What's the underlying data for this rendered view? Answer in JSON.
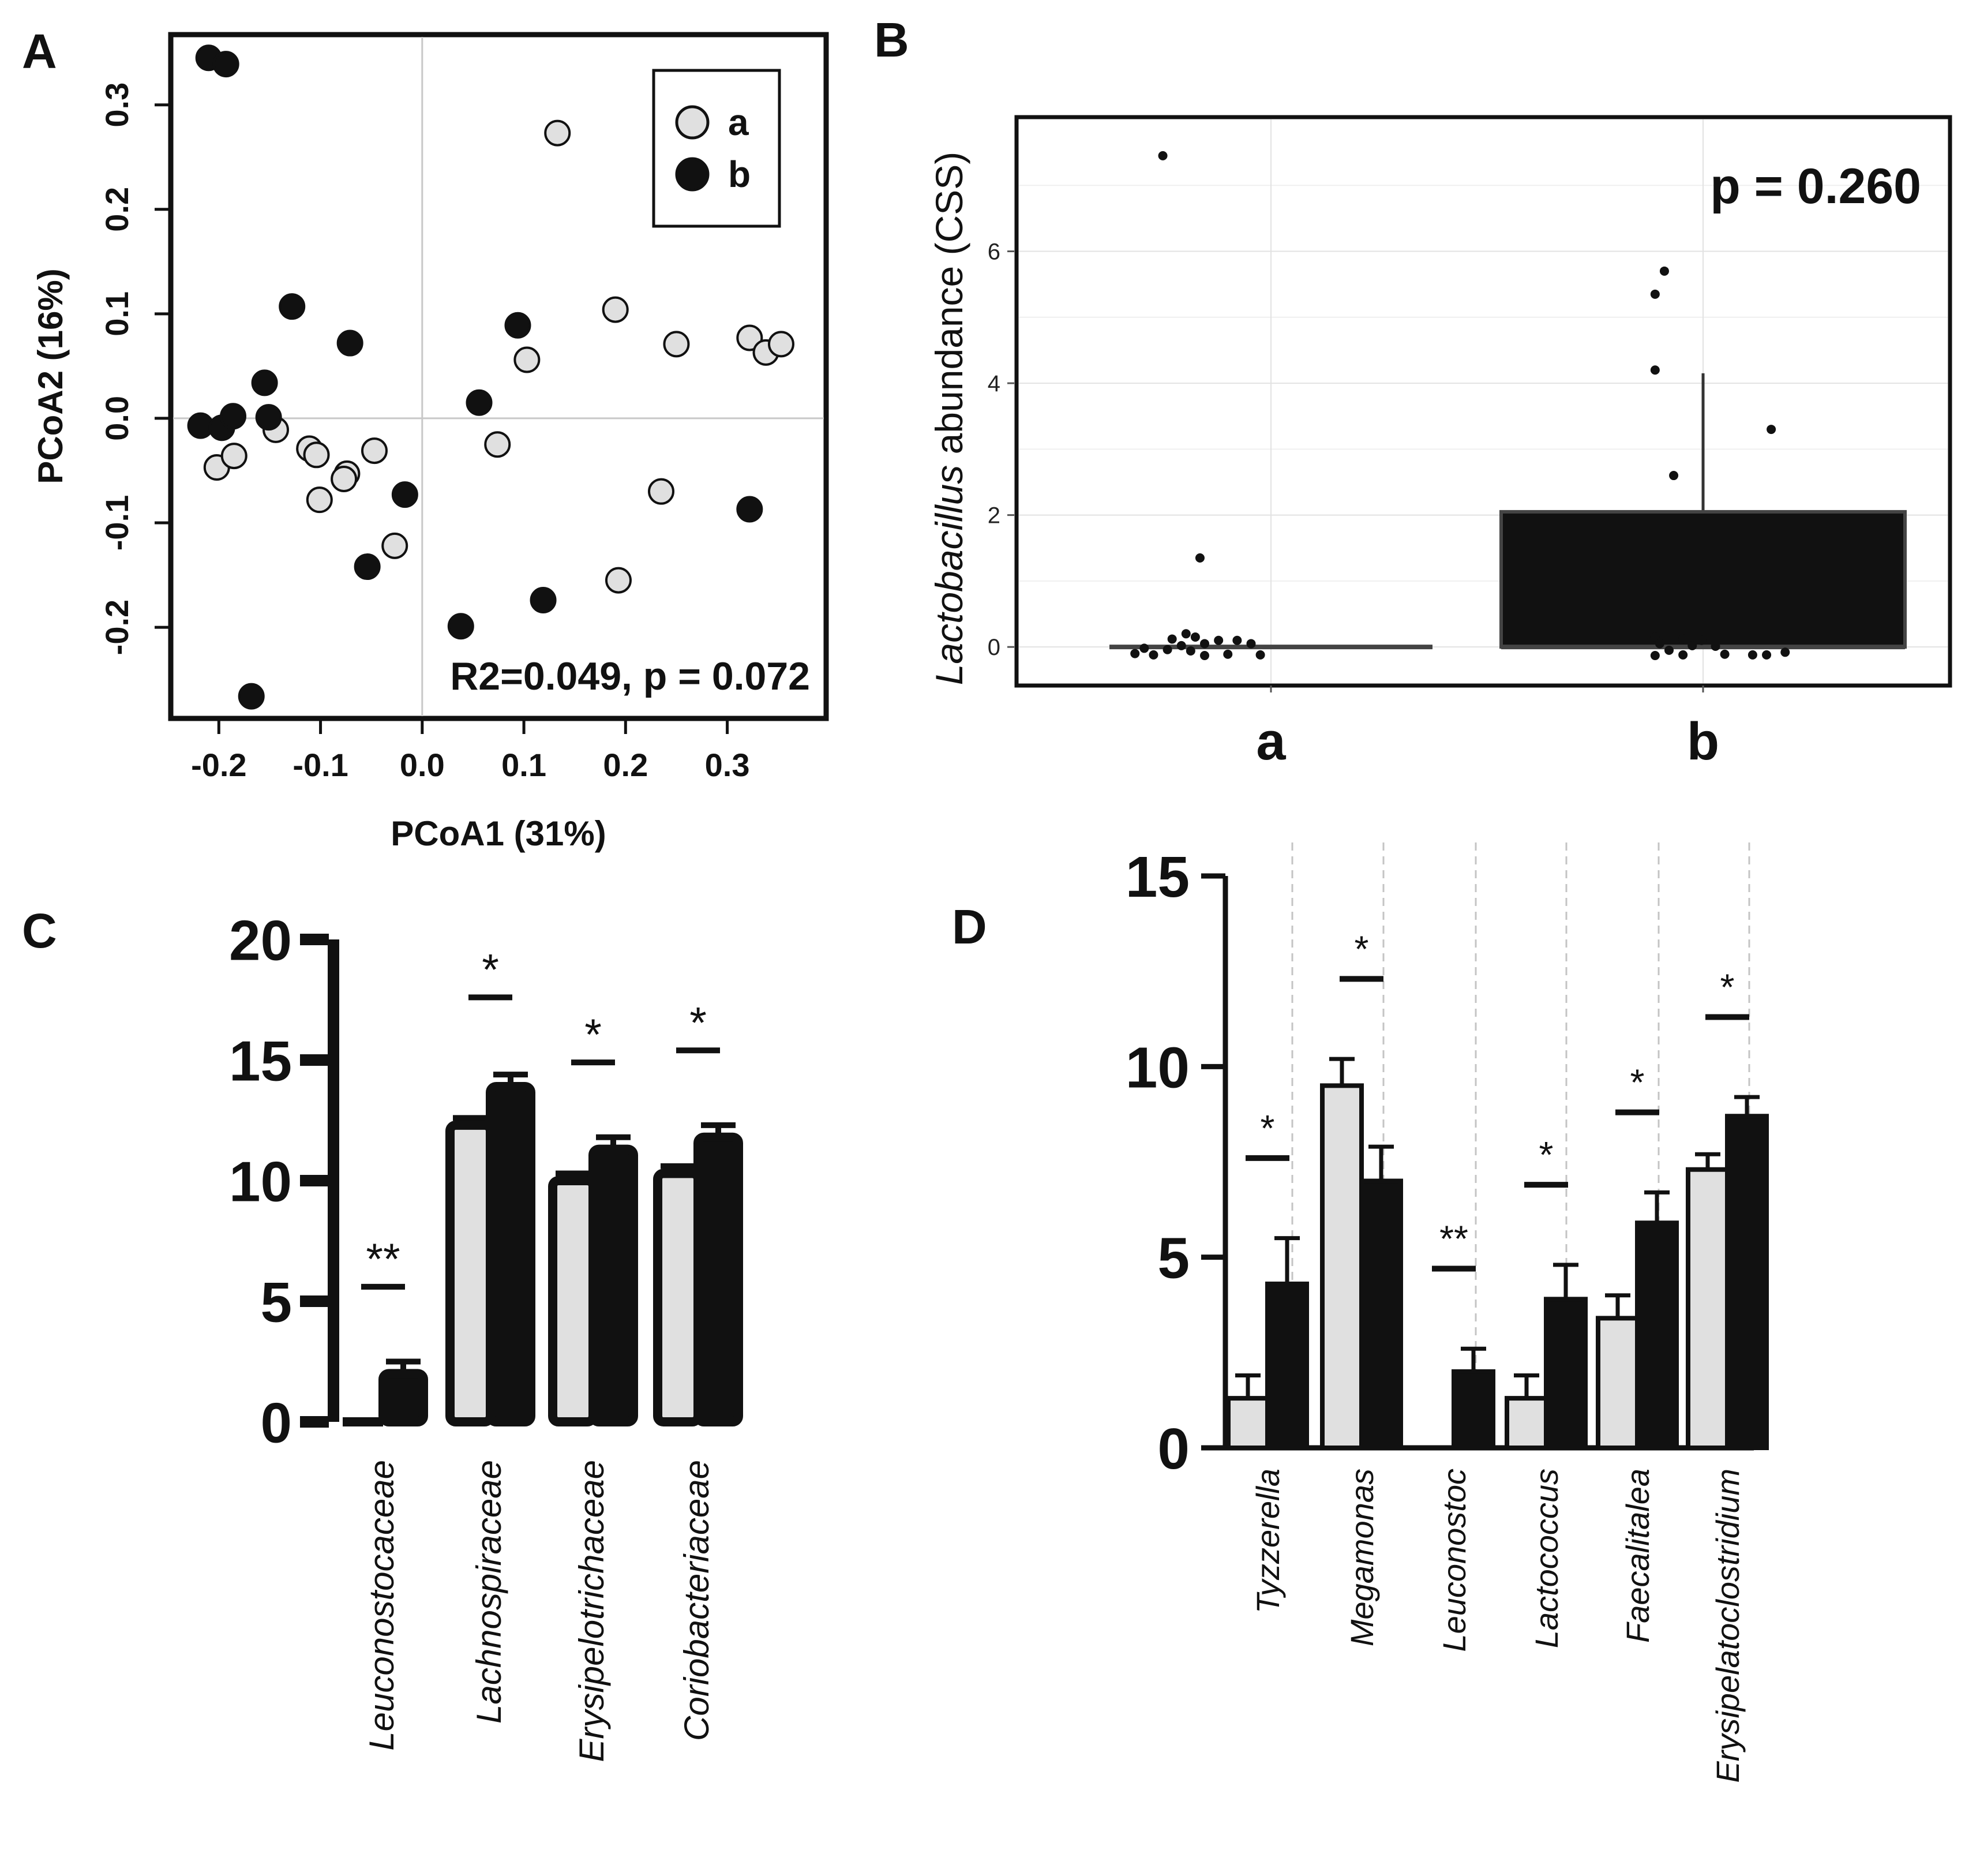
{
  "figure": {
    "panel_letters": [
      "A",
      "B",
      "C",
      "D"
    ]
  },
  "chart_data": [
    {
      "panel": "A",
      "type": "scatter",
      "xlabel": "PCoA1 (31%)",
      "ylabel": "PCoA2 (16%)",
      "xlim": [
        -0.245,
        0.395
      ],
      "ylim": [
        -0.285,
        0.365
      ],
      "xticks": [
        -0.2,
        -0.1,
        0.0,
        0.1,
        0.2,
        0.3
      ],
      "xtick_labels": [
        "-0.2",
        "-0.1",
        "0.0",
        "0.1",
        "0.2",
        "0.3"
      ],
      "yticks": [
        -0.2,
        -0.1,
        0.0,
        0.1,
        0.2,
        0.3
      ],
      "ytick_labels": [
        "-0.2",
        "-0.1",
        "0.0",
        "0.1",
        "0.2",
        "0.3"
      ],
      "reference_lines": {
        "x": 0.0,
        "y": 0.0
      },
      "annotation": "R2=0.049, p = 0.072",
      "legend": {
        "position": "top-right",
        "entries": [
          {
            "label": "a",
            "color": "#e0e0e0"
          },
          {
            "label": "b",
            "color": "#111111"
          }
        ]
      },
      "series": [
        {
          "name": "a",
          "color": "#e0e0e0",
          "points": [
            [
              0.133,
              0.273
            ],
            [
              0.19,
              0.104
            ],
            [
              0.25,
              0.071
            ],
            [
              0.322,
              0.077
            ],
            [
              0.338,
              0.063
            ],
            [
              0.353,
              0.071
            ],
            [
              0.103,
              0.056
            ],
            [
              -0.202,
              -0.047
            ],
            [
              -0.185,
              -0.036
            ],
            [
              -0.144,
              -0.011
            ],
            [
              -0.111,
              -0.029
            ],
            [
              -0.104,
              -0.035
            ],
            [
              -0.047,
              -0.031
            ],
            [
              -0.074,
              -0.053
            ],
            [
              -0.077,
              -0.058
            ],
            [
              -0.101,
              -0.078
            ],
            [
              0.074,
              -0.025
            ],
            [
              -0.027,
              -0.122
            ],
            [
              0.235,
              -0.07
            ],
            [
              0.193,
              -0.155
            ]
          ]
        },
        {
          "name": "b",
          "color": "#111111",
          "points": [
            [
              -0.21,
              0.345
            ],
            [
              -0.193,
              0.339
            ],
            [
              -0.128,
              0.107
            ],
            [
              -0.071,
              0.072
            ],
            [
              -0.155,
              0.034
            ],
            [
              -0.218,
              -0.007
            ],
            [
              -0.197,
              -0.009
            ],
            [
              -0.186,
              0.002
            ],
            [
              -0.151,
              0.001
            ],
            [
              0.094,
              0.089
            ],
            [
              0.056,
              0.015
            ],
            [
              -0.017,
              -0.073
            ],
            [
              -0.054,
              -0.142
            ],
            [
              0.322,
              -0.087
            ],
            [
              0.119,
              -0.174
            ],
            [
              0.038,
              -0.199
            ],
            [
              -0.168,
              -0.266
            ]
          ]
        }
      ]
    },
    {
      "panel": "B",
      "type": "box",
      "categories": [
        "a",
        "b"
      ],
      "ylabel_italic": "Lactobacillus",
      "ylabel_rest": " abundance (CSS)",
      "ylim": [
        -0.55,
        8.0
      ],
      "yticks": [
        0,
        2,
        4,
        6
      ],
      "ytick_labels": [
        "0",
        "2",
        "4",
        "6"
      ],
      "annotation": "p = 0.260",
      "boxes": [
        {
          "category": "a",
          "q1": 0,
          "median": 0,
          "q3": 0,
          "whisker_low": 0,
          "whisker_high": 0,
          "color": "#333333"
        },
        {
          "category": "b",
          "q1": 0,
          "median": 0,
          "q3": 2.05,
          "whisker_low": 0,
          "whisker_high": 4.15,
          "color": "#111111"
        }
      ],
      "points": {
        "a": [
          [
            0.31,
            7.45
          ],
          [
            0.39,
            1.35
          ],
          [
            0.36,
            0.2
          ],
          [
            0.38,
            0.15
          ],
          [
            0.33,
            0.12
          ],
          [
            0.43,
            0.1
          ],
          [
            0.47,
            0.1
          ],
          [
            0.5,
            0.05
          ],
          [
            0.4,
            0.05
          ],
          [
            0.35,
            0.02
          ],
          [
            0.27,
            -0.02
          ],
          [
            0.32,
            -0.04
          ],
          [
            0.25,
            -0.1
          ],
          [
            0.29,
            -0.12
          ],
          [
            0.37,
            -0.06
          ],
          [
            0.45,
            -0.11
          ],
          [
            0.52,
            -0.12
          ],
          [
            0.4,
            -0.13
          ]
        ],
        "b": [
          [
            1.39,
            5.7
          ],
          [
            1.37,
            5.35
          ],
          [
            1.37,
            4.2
          ],
          [
            1.62,
            3.3
          ],
          [
            1.41,
            2.6
          ],
          [
            1.37,
            0.15
          ],
          [
            1.43,
            0.12
          ],
          [
            1.47,
            0.1
          ],
          [
            1.38,
            0.05
          ],
          [
            1.45,
            0.02
          ],
          [
            1.5,
            0.01
          ],
          [
            1.4,
            -0.05
          ],
          [
            1.43,
            -0.12
          ],
          [
            1.37,
            -0.13
          ],
          [
            1.52,
            -0.11
          ],
          [
            1.58,
            -0.12
          ],
          [
            1.61,
            -0.12
          ],
          [
            1.65,
            -0.08
          ]
        ]
      }
    },
    {
      "panel": "C",
      "type": "bar",
      "categories": [
        "Leuconostocaceae",
        "Lachnospiraceae",
        "Erysipelotrichaceae",
        "Coriobacteriaceae"
      ],
      "ylim": [
        0,
        20
      ],
      "yticks": [
        0,
        5,
        10,
        15,
        20
      ],
      "ytick_labels": [
        "0",
        "5",
        "10",
        "15",
        "20"
      ],
      "series": [
        {
          "name": "a",
          "color": "#e0e0e0",
          "values": [
            0.0,
            12.3,
            10.0,
            10.3
          ],
          "errors": [
            0.0,
            0.3,
            0.3,
            0.3
          ]
        },
        {
          "name": "b",
          "color": "#111111",
          "values": [
            2.0,
            13.9,
            11.3,
            11.8
          ],
          "errors": [
            0.5,
            0.5,
            0.5,
            0.5
          ]
        }
      ],
      "significance": [
        {
          "label": "**",
          "y": 5.6
        },
        {
          "label": "*",
          "y": 17.6
        },
        {
          "label": "*",
          "y": 14.9
        },
        {
          "label": "*",
          "y": 15.4
        }
      ]
    },
    {
      "panel": "D",
      "type": "bar",
      "categories": [
        "Tyzzerella",
        "Megamonas",
        "Leuconostoc",
        "Lactococcus",
        "Faecalitalea",
        "Erysipelatoclostridium"
      ],
      "ylim": [
        0,
        15
      ],
      "yticks": [
        0,
        5,
        10,
        15
      ],
      "ytick_labels": [
        "0",
        "5",
        "10",
        "15"
      ],
      "series": [
        {
          "name": "a",
          "color": "#e0e0e0",
          "values": [
            1.3,
            9.5,
            0.0,
            1.3,
            3.4,
            7.3
          ],
          "errors": [
            0.6,
            0.7,
            0.0,
            0.6,
            0.6,
            0.4
          ]
        },
        {
          "name": "b",
          "color": "#111111",
          "values": [
            4.3,
            7.0,
            2.0,
            3.9,
            5.9,
            8.7
          ],
          "errors": [
            1.2,
            0.9,
            0.6,
            0.9,
            0.8,
            0.5
          ]
        }
      ],
      "significance": [
        {
          "label": "*",
          "y": 7.6
        },
        {
          "label": "*",
          "y": 12.3
        },
        {
          "label": "**",
          "y": 4.7
        },
        {
          "label": "*",
          "y": 6.9
        },
        {
          "label": "*",
          "y": 8.8
        },
        {
          "label": "*",
          "y": 11.3
        }
      ]
    }
  ]
}
